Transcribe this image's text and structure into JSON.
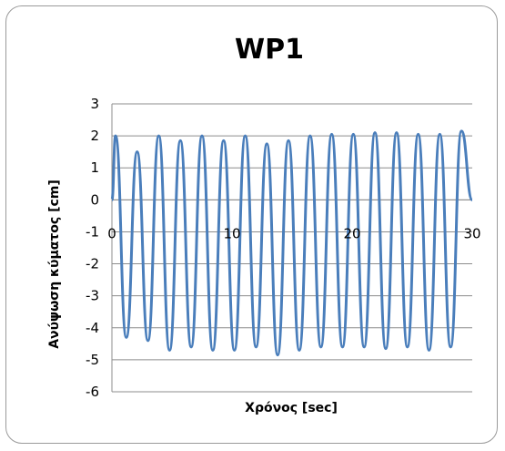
{
  "chart_data": {
    "type": "line",
    "title": "WP1",
    "xlabel": "Χρόνος [sec]",
    "ylabel": "Ανύψωση κύματος [cm]",
    "xlim": [
      0,
      30
    ],
    "ylim": [
      -6,
      3
    ],
    "x_ticks": [
      0,
      10,
      20,
      30
    ],
    "y_ticks": [
      3,
      2,
      1,
      0,
      -1,
      -2,
      -3,
      -4,
      -5,
      -6
    ],
    "grid": "horizontal",
    "legend": "none",
    "series": [
      {
        "color": "#4a7ebb",
        "x": [
          0,
          0.3,
          1.2,
          2.1,
          3.0,
          3.9,
          4.8,
          5.7,
          6.6,
          7.5,
          8.4,
          9.3,
          10.2,
          11.1,
          12.0,
          12.9,
          13.8,
          14.7,
          15.6,
          16.5,
          17.4,
          18.3,
          19.2,
          20.1,
          21.0,
          21.9,
          22.8,
          23.7,
          24.6,
          25.5,
          26.4,
          27.3,
          28.2,
          29.1,
          30.0
        ],
        "y": [
          0,
          2.0,
          -4.3,
          1.5,
          -4.4,
          2.0,
          -4.7,
          1.85,
          -4.6,
          2.0,
          -4.7,
          1.85,
          -4.7,
          2.0,
          -4.6,
          1.75,
          -4.85,
          1.85,
          -4.7,
          2.0,
          -4.6,
          2.05,
          -4.6,
          2.05,
          -4.6,
          2.1,
          -4.65,
          2.1,
          -4.6,
          2.05,
          -4.7,
          2.05,
          -4.6,
          2.15,
          0
        ]
      }
    ]
  }
}
